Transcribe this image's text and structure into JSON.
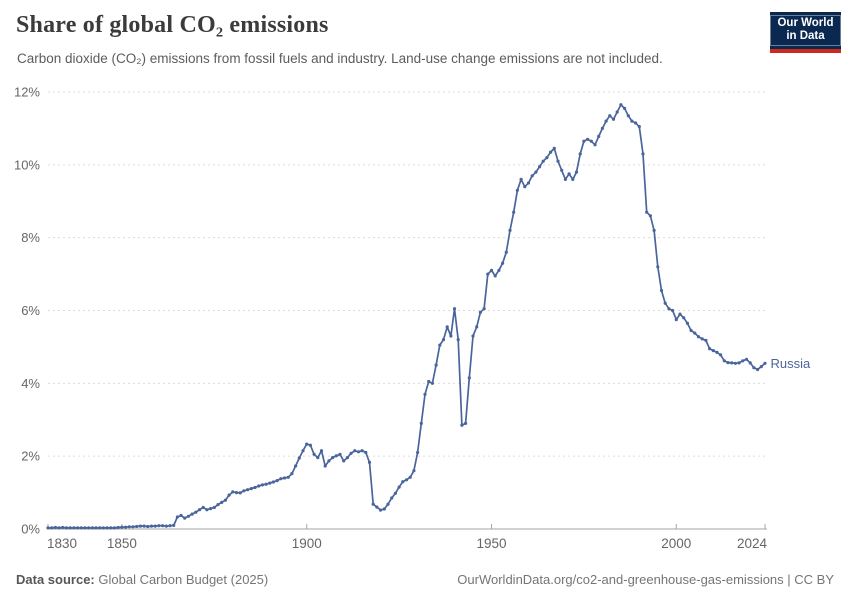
{
  "header": {
    "title": "Share of global CO₂ emissions",
    "subtitle": "Carbon dioxide (CO₂) emissions from fossil fuels and industry. Land-use change emissions are not included.",
    "logo": {
      "line1": "Our World",
      "line2": "in Data",
      "bg_color": "#0A2850",
      "stripe_color": "#CE2A1C"
    }
  },
  "footer": {
    "source_label": "Data source:",
    "source_text": "Global Carbon Budget (2025)",
    "link": "OurWorldinData.org/co2-and-greenhouse-gas-emissions | CC BY"
  },
  "chart_data": {
    "type": "line",
    "title": "Share of global CO₂ emissions",
    "xlabel": "",
    "ylabel": "",
    "xlim": [
      1830,
      2024
    ],
    "ylim": [
      0,
      12
    ],
    "x_ticks": [
      1830,
      1850,
      1900,
      1950,
      2000,
      2024
    ],
    "y_ticks": [
      0,
      2,
      4,
      6,
      8,
      10,
      12
    ],
    "y_tick_suffix": "%",
    "grid": "horizontal-dashed",
    "legend_position": "end-of-line-label",
    "markers": true,
    "colors": {
      "line": "#4A659B",
      "grid": "#DCDCDC",
      "axis": "#A5A5A5",
      "tick_label": "#666666"
    },
    "series": [
      {
        "name": "Russia",
        "color": "#4A659B",
        "start_year": 1830,
        "values": [
          0.03,
          0.03,
          0.04,
          0.03,
          0.04,
          0.03,
          0.03,
          0.03,
          0.03,
          0.03,
          0.03,
          0.03,
          0.03,
          0.03,
          0.03,
          0.03,
          0.03,
          0.03,
          0.03,
          0.04,
          0.05,
          0.05,
          0.06,
          0.06,
          0.07,
          0.08,
          0.08,
          0.07,
          0.08,
          0.08,
          0.09,
          0.09,
          0.08,
          0.09,
          0.1,
          0.33,
          0.37,
          0.3,
          0.35,
          0.41,
          0.46,
          0.53,
          0.59,
          0.53,
          0.56,
          0.59,
          0.67,
          0.73,
          0.79,
          0.93,
          1.02,
          1.0,
          0.99,
          1.05,
          1.08,
          1.11,
          1.14,
          1.18,
          1.21,
          1.23,
          1.26,
          1.29,
          1.33,
          1.38,
          1.4,
          1.42,
          1.52,
          1.73,
          1.95,
          2.15,
          2.33,
          2.3,
          2.05,
          1.96,
          2.15,
          1.73,
          1.87,
          1.96,
          2.01,
          2.05,
          1.87,
          1.96,
          2.08,
          2.15,
          2.12,
          2.15,
          2.1,
          1.83,
          0.68,
          0.6,
          0.52,
          0.55,
          0.68,
          0.85,
          0.98,
          1.15,
          1.3,
          1.35,
          1.42,
          1.6,
          2.1,
          2.9,
          3.7,
          4.05,
          4.0,
          4.5,
          5.05,
          5.2,
          5.55,
          5.3,
          6.05,
          5.2,
          2.85,
          2.9,
          4.15,
          5.3,
          5.55,
          5.95,
          6.05,
          7.0,
          7.1,
          6.95,
          7.1,
          7.3,
          7.6,
          8.2,
          8.7,
          9.3,
          9.6,
          9.4,
          9.5,
          9.7,
          9.8,
          9.95,
          10.1,
          10.2,
          10.35,
          10.45,
          10.1,
          9.85,
          9.6,
          9.75,
          9.6,
          9.8,
          10.3,
          10.65,
          10.7,
          10.65,
          10.55,
          10.78,
          11.0,
          11.2,
          11.35,
          11.25,
          11.45,
          11.65,
          11.55,
          11.35,
          11.2,
          11.15,
          11.05,
          10.3,
          8.7,
          8.6,
          8.2,
          7.2,
          6.55,
          6.2,
          6.05,
          6.0,
          5.75,
          5.9,
          5.8,
          5.65,
          5.45,
          5.38,
          5.28,
          5.22,
          5.18,
          4.95,
          4.9,
          4.85,
          4.78,
          4.62,
          4.57,
          4.56,
          4.55,
          4.56,
          4.62,
          4.66,
          4.56,
          4.43,
          4.38,
          4.46,
          4.55
        ]
      }
    ]
  }
}
